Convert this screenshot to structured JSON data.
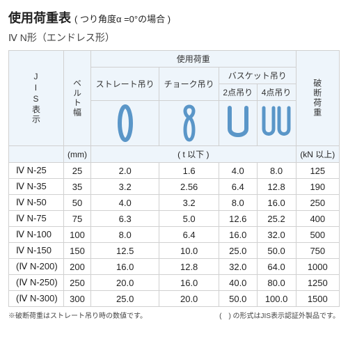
{
  "title_main": "使用荷重表",
  "title_sub": "( つり角度α =0°の場合 )",
  "subtitle": "Ⅳ N形（エンドレス形）",
  "header": {
    "jis": "JIS表示",
    "belt": "ベルト幅",
    "load": "使用荷重",
    "straight": "ストレート吊り",
    "choke": "チョーク吊り",
    "basket": "バスケット吊り",
    "pt2": "2点吊り",
    "pt4": "4点吊り",
    "break": "破断荷重"
  },
  "units": {
    "mm": "(mm)",
    "t": "( t 以下 )",
    "kn": "(kN 以上)"
  },
  "icons": {
    "stroke": "#5a96c8",
    "stroke_width": 3
  },
  "rows": [
    {
      "jis": "Ⅳ N-25",
      "w": "25",
      "s": "2.0",
      "c": "1.6",
      "b2": "4.0",
      "b4": "8.0",
      "br": "125"
    },
    {
      "jis": "Ⅳ N-35",
      "w": "35",
      "s": "3.2",
      "c": "2.56",
      "b2": "6.4",
      "b4": "12.8",
      "br": "190"
    },
    {
      "jis": "Ⅳ N-50",
      "w": "50",
      "s": "4.0",
      "c": "3.2",
      "b2": "8.0",
      "b4": "16.0",
      "br": "250"
    },
    {
      "jis": "Ⅳ N-75",
      "w": "75",
      "s": "6.3",
      "c": "5.0",
      "b2": "12.6",
      "b4": "25.2",
      "br": "400"
    },
    {
      "jis": "Ⅳ N-100",
      "w": "100",
      "s": "8.0",
      "c": "6.4",
      "b2": "16.0",
      "b4": "32.0",
      "br": "500"
    },
    {
      "jis": "Ⅳ N-150",
      "w": "150",
      "s": "12.5",
      "c": "10.0",
      "b2": "25.0",
      "b4": "50.0",
      "br": "750"
    },
    {
      "jis": "(Ⅳ N-200)",
      "w": "200",
      "s": "16.0",
      "c": "12.8",
      "b2": "32.0",
      "b4": "64.0",
      "br": "1000"
    },
    {
      "jis": "(Ⅳ N-250)",
      "w": "250",
      "s": "20.0",
      "c": "16.0",
      "b2": "40.0",
      "b4": "80.0",
      "br": "1250"
    },
    {
      "jis": "(Ⅳ N-300)",
      "w": "300",
      "s": "25.0",
      "c": "20.0",
      "b2": "50.0",
      "b4": "100.0",
      "br": "1500"
    }
  ],
  "notes": {
    "left": "※破断荷重はストレート吊り時の数値です。",
    "right": "(　) の形式はJIS表示認証外製品です。"
  }
}
